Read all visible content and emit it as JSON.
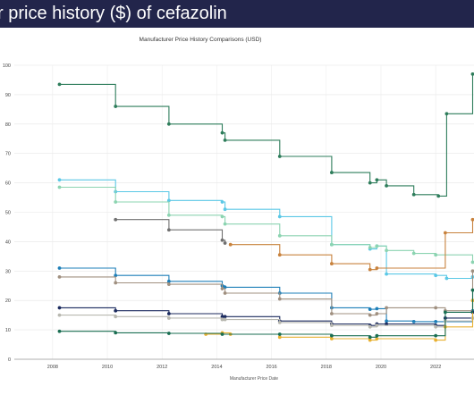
{
  "page": {
    "heading": "r price history ($) of cefazolin"
  },
  "chart_data": {
    "type": "line",
    "title": "Manufacturer Price History Comparisons (USD)",
    "xlabel": "Manufacturer Price Date",
    "ylabel": "",
    "xlim": [
      2006.6,
      2023.4
    ],
    "ylim": [
      0,
      100
    ],
    "x_ticks": [
      "2008",
      "2010",
      "2012",
      "2014",
      "2016",
      "2018",
      "2020",
      "2022"
    ],
    "y_ticks": [
      "0",
      "10",
      "20",
      "30",
      "40",
      "50",
      "60",
      "70",
      "80",
      "90",
      "100"
    ],
    "grid": true,
    "legend": "none",
    "step": true,
    "series": [
      {
        "color": "#2e7d5b",
        "points": [
          [
            2008.25,
            93.5
          ],
          [
            2010.3,
            86
          ],
          [
            2012.25,
            80
          ],
          [
            2014.2,
            77
          ],
          [
            2014.3,
            74.5
          ],
          [
            2016.3,
            69
          ],
          [
            2018.2,
            63.5
          ],
          [
            2019.6,
            60
          ],
          [
            2019.85,
            61
          ],
          [
            2020.2,
            59
          ],
          [
            2021.2,
            56
          ],
          [
            2022.1,
            55.5
          ],
          [
            2022.4,
            83.5
          ],
          [
            2023.35,
            97
          ]
        ]
      },
      {
        "color": "#5bc8e6",
        "points": [
          [
            2008.25,
            61
          ],
          [
            2010.3,
            57
          ],
          [
            2012.25,
            54
          ],
          [
            2014.2,
            53.5
          ],
          [
            2014.3,
            51
          ],
          [
            2016.3,
            48.5
          ],
          [
            2018.2,
            39
          ],
          [
            2019.6,
            37.5
          ],
          [
            2019.85,
            38.5
          ],
          [
            2020.2,
            29
          ],
          [
            2022.0,
            28.5
          ],
          [
            2022.4,
            27.5
          ],
          [
            2023.35,
            28
          ]
        ]
      },
      {
        "color": "#8cd4b1",
        "points": [
          [
            2008.25,
            58.5
          ],
          [
            2010.3,
            53.5
          ],
          [
            2012.25,
            49
          ],
          [
            2014.2,
            48.5
          ],
          [
            2014.3,
            46
          ],
          [
            2016.3,
            42
          ],
          [
            2018.2,
            39
          ],
          [
            2019.6,
            38
          ],
          [
            2019.85,
            38.5
          ],
          [
            2020.2,
            37
          ],
          [
            2021.2,
            36
          ],
          [
            2022.0,
            35.5
          ],
          [
            2023.35,
            33
          ]
        ]
      },
      {
        "color": "#707070",
        "points": [
          [
            2010.3,
            47.5
          ],
          [
            2012.25,
            44
          ],
          [
            2014.2,
            40.5
          ],
          [
            2014.3,
            39.5
          ]
        ]
      },
      {
        "color": "#c8823d",
        "points": [
          [
            2014.5,
            39
          ],
          [
            2016.3,
            35.5
          ],
          [
            2018.2,
            32.5
          ],
          [
            2019.6,
            30.5
          ],
          [
            2019.85,
            31
          ],
          [
            2022.35,
            43
          ],
          [
            2023.35,
            47.5
          ]
        ]
      },
      {
        "color": "#1e7fb8",
        "points": [
          [
            2008.25,
            31
          ],
          [
            2010.3,
            28.5
          ],
          [
            2012.25,
            26.5
          ],
          [
            2014.2,
            25
          ],
          [
            2014.3,
            24.5
          ],
          [
            2016.3,
            22.5
          ],
          [
            2018.2,
            17.5
          ],
          [
            2019.6,
            17
          ],
          [
            2019.85,
            17.2
          ],
          [
            2020.2,
            13
          ],
          [
            2021.2,
            12.8
          ],
          [
            2022.0,
            12.8
          ],
          [
            2023.35,
            16.5
          ]
        ]
      },
      {
        "color": "#a09080",
        "points": [
          [
            2008.25,
            28
          ],
          [
            2010.3,
            26
          ],
          [
            2012.25,
            25.5
          ],
          [
            2014.2,
            24
          ],
          [
            2014.3,
            22.5
          ],
          [
            2016.3,
            20.5
          ],
          [
            2018.2,
            15.5
          ],
          [
            2019.6,
            15
          ],
          [
            2019.85,
            15.5
          ],
          [
            2020.2,
            17.5
          ],
          [
            2022.0,
            17.5
          ],
          [
            2022.35,
            16.5
          ],
          [
            2023.35,
            30
          ]
        ]
      },
      {
        "color": "#1b2a5e",
        "points": [
          [
            2008.25,
            17.5
          ],
          [
            2010.3,
            16.5
          ],
          [
            2012.25,
            15.5
          ],
          [
            2014.2,
            14.5
          ],
          [
            2014.3,
            14.5
          ],
          [
            2016.3,
            13
          ],
          [
            2018.2,
            12
          ],
          [
            2019.6,
            11.5
          ],
          [
            2019.85,
            12
          ],
          [
            2020.2,
            12
          ],
          [
            2022.0,
            11.5
          ],
          [
            2022.35,
            14
          ],
          [
            2023.35,
            16
          ]
        ]
      },
      {
        "color": "#b8b8b0",
        "points": [
          [
            2008.25,
            15
          ],
          [
            2010.3,
            14.5
          ],
          [
            2012.25,
            14
          ],
          [
            2014.2,
            13.5
          ],
          [
            2014.3,
            13.5
          ],
          [
            2016.3,
            12.5
          ],
          [
            2018.2,
            11.5
          ],
          [
            2019.6,
            11
          ],
          [
            2019.85,
            11.5
          ],
          [
            2022.0,
            11
          ],
          [
            2022.35,
            13
          ],
          [
            2023.35,
            14
          ]
        ]
      },
      {
        "color": "#e8b030",
        "points": [
          [
            2013.6,
            8.5
          ],
          [
            2014.2,
            9
          ],
          [
            2014.5,
            8.5
          ],
          [
            2016.3,
            7.5
          ],
          [
            2018.2,
            7
          ],
          [
            2019.6,
            6.5
          ],
          [
            2019.85,
            7
          ],
          [
            2022.0,
            6.5
          ],
          [
            2022.35,
            11
          ],
          [
            2023.35,
            20
          ]
        ]
      },
      {
        "color": "#1a6e52",
        "points": [
          [
            2008.25,
            9.5
          ],
          [
            2010.3,
            9
          ],
          [
            2012.25,
            8.8
          ],
          [
            2014.2,
            8.5
          ],
          [
            2016.3,
            8.5
          ],
          [
            2018.2,
            8
          ],
          [
            2019.6,
            7.5
          ],
          [
            2019.85,
            8
          ],
          [
            2022.0,
            8
          ],
          [
            2022.35,
            16
          ],
          [
            2023.35,
            23.5
          ]
        ]
      }
    ]
  }
}
